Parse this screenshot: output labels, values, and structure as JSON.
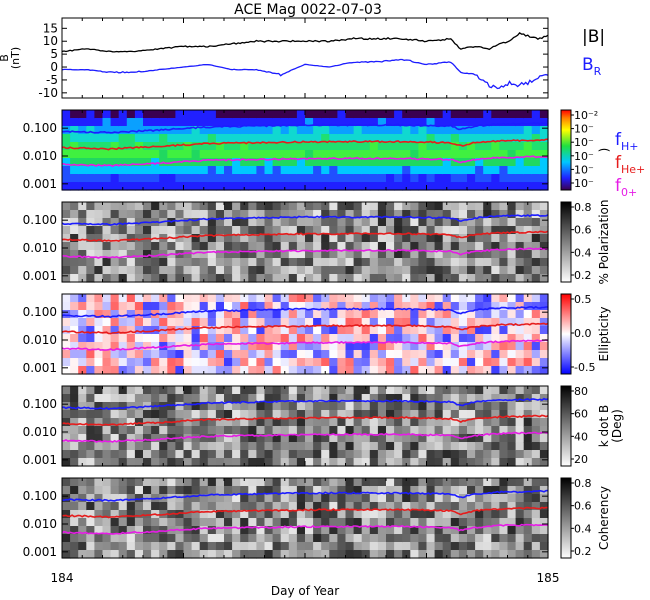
{
  "title": "ACE Mag 0022-07-03",
  "chart_data": {
    "type": "line",
    "xlabel": "Day of Year",
    "x_range": [
      184,
      185
    ],
    "x_ticks": [
      "184",
      "185"
    ],
    "panels": [
      {
        "id": "mag",
        "kind": "line",
        "ylabel": "B\n(nT)",
        "ylim": [
          -12,
          19
        ],
        "y_ticks": [
          "15",
          "10",
          "5",
          "0",
          "-5",
          "-10"
        ],
        "series": [
          {
            "name": "|B|",
            "color": "#000000",
            "x": [
              184.0,
              184.05,
              184.1,
              184.15,
              184.2,
              184.25,
              184.3,
              184.35,
              184.4,
              184.45,
              184.5,
              184.55,
              184.6,
              184.65,
              184.7,
              184.75,
              184.8,
              184.82,
              184.85,
              184.88,
              184.9,
              184.92,
              184.94,
              184.96,
              184.98,
              185.0
            ],
            "y": [
              6,
              7,
              6,
              6,
              7,
              8,
              8,
              9,
              10,
              10,
              10,
              10,
              11,
              11,
              11,
              10,
              11,
              7,
              8,
              7,
              9,
              10,
              13,
              12,
              11,
              12
            ]
          },
          {
            "name": "B_R",
            "color": "#1c1cff",
            "x": [
              184.0,
              184.05,
              184.1,
              184.15,
              184.2,
              184.25,
              184.3,
              184.35,
              184.4,
              184.45,
              184.5,
              184.55,
              184.6,
              184.65,
              184.7,
              184.75,
              184.8,
              184.82,
              184.85,
              184.88,
              184.9,
              184.92,
              184.94,
              184.96,
              184.98,
              185.0
            ],
            "y": [
              -1,
              -1,
              -2,
              -2,
              -1,
              0,
              1,
              -1,
              -1,
              -3,
              1,
              0,
              2,
              2,
              3,
              1,
              2,
              -2,
              -3,
              -7,
              -8,
              -6,
              -7,
              -6,
              -4,
              -3
            ]
          }
        ]
      },
      {
        "id": "spectral",
        "kind": "spectrogram",
        "ylabel": "",
        "y_ticks": [
          "0.100",
          "0.010",
          "0.001"
        ],
        "cbar": "rainbow",
        "cbar_label": ")",
        "cbar_ticks": [
          "10⁻²",
          "10⁻",
          "10⁻",
          "10⁻",
          "10⁻",
          "10⁻"
        ]
      },
      {
        "id": "polarization",
        "kind": "spectrogram",
        "ylabel": "",
        "y_ticks": [
          "0.100",
          "0.010",
          "0.001"
        ],
        "cbar": "gray",
        "cbar_label": "% Polarization",
        "cbar_ticks": [
          "0.8",
          "0.6",
          "0.4",
          "0.2"
        ]
      },
      {
        "id": "ellipticity",
        "kind": "spectrogram",
        "ylabel": "",
        "y_ticks": [
          "0.100",
          "0.010",
          "0.001"
        ],
        "cbar": "bwr",
        "cbar_label": "Ellipticity",
        "cbar_ticks": [
          "0.5",
          "0.0",
          "-0.5"
        ]
      },
      {
        "id": "kdotb",
        "kind": "spectrogram",
        "ylabel": "",
        "y_ticks": [
          "0.100",
          "0.010",
          "0.001"
        ],
        "cbar": "gray",
        "cbar_label": "k dot B\n(Deg)",
        "cbar_ticks": [
          "80",
          "60",
          "40",
          "20"
        ]
      },
      {
        "id": "coherency",
        "kind": "spectrogram",
        "ylabel": "",
        "y_ticks": [
          "0.100",
          "0.010",
          "0.001"
        ],
        "cbar": "gray",
        "cbar_label": "Coherency",
        "cbar_ticks": [
          "0.8",
          "0.6",
          "0.4",
          "0.2"
        ]
      }
    ],
    "gyro_lines": [
      {
        "name": "f_H+",
        "color": "#1c1cff",
        "x": [
          184.0,
          184.1,
          184.2,
          184.3,
          184.4,
          184.5,
          184.6,
          184.7,
          184.8,
          184.82,
          184.85,
          184.9,
          185.0
        ],
        "y": [
          0.075,
          0.07,
          0.085,
          0.11,
          0.12,
          0.13,
          0.13,
          0.13,
          0.12,
          0.09,
          0.12,
          0.14,
          0.15
        ]
      },
      {
        "name": "f_He+",
        "color": "#e61c1c",
        "x": [
          184.0,
          184.1,
          184.2,
          184.3,
          184.4,
          184.5,
          184.6,
          184.7,
          184.8,
          184.82,
          184.85,
          184.9,
          185.0
        ],
        "y": [
          0.02,
          0.018,
          0.022,
          0.028,
          0.03,
          0.032,
          0.033,
          0.033,
          0.03,
          0.023,
          0.03,
          0.035,
          0.038
        ]
      },
      {
        "name": "f_O+",
        "color": "#e61ce6",
        "x": [
          184.0,
          184.1,
          184.2,
          184.3,
          184.4,
          184.5,
          184.6,
          184.7,
          184.8,
          184.82,
          184.85,
          184.9,
          185.0
        ],
        "y": [
          0.005,
          0.0045,
          0.0055,
          0.007,
          0.0075,
          0.008,
          0.0082,
          0.0082,
          0.0075,
          0.0058,
          0.0075,
          0.0088,
          0.0095
        ]
      }
    ]
  },
  "legend": {
    "mag": [
      {
        "text": "|B|",
        "color": "#000000"
      },
      {
        "text": "B",
        "sub": "R",
        "color": "#1c1cff"
      }
    ],
    "gyro": [
      {
        "text": "f",
        "sub": "H+",
        "color": "#1c1cff"
      },
      {
        "text": "f",
        "sub": "He+",
        "color": "#e61c1c"
      },
      {
        "text": "f",
        "sub": "0+",
        "color": "#e61ce6"
      }
    ]
  }
}
